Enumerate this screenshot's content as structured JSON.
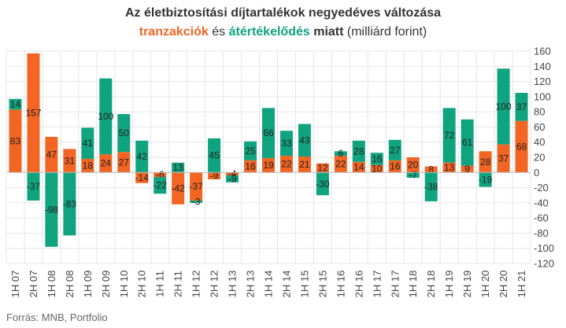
{
  "title": {
    "line1": "Az életbiztosítási díjtartalékok negyedéves változása",
    "line2_part1": "tranzakciók",
    "line2_mid": " és ",
    "line2_part2": "átértékelődés",
    "line2_bold_tail": " miatt",
    "line2_tail": " (milliárd forint)"
  },
  "source": "Forrás: MNB, Portfolio",
  "colors": {
    "tranzakciok": "#f26522",
    "atertekelodes": "#10a37f",
    "grid": "#e6e6e6",
    "text": "#333333"
  },
  "chart_data": {
    "type": "bar",
    "stacked": true,
    "categories": [
      "1H 07",
      "2H 07",
      "1H 08",
      "2H 08",
      "1H 09",
      "2H 09",
      "1H 10",
      "2H 10",
      "1H 11",
      "2H 11",
      "1H 12",
      "2H 12",
      "1H 13",
      "2H 13",
      "1H 14",
      "2H 14",
      "1H 15",
      "2H 15",
      "1H 16",
      "2H 16",
      "1H 17",
      "2H 17",
      "1H 18",
      "2H 18",
      "1H 19",
      "2H 19",
      "1H 20",
      "2H 20",
      "1H 21"
    ],
    "series": [
      {
        "name": "tranzakciók",
        "color": "#f26522",
        "values": [
          83,
          157,
          47,
          31,
          18,
          24,
          27,
          -14,
          -6,
          -42,
          -37,
          -9,
          -4,
          16,
          19,
          22,
          21,
          12,
          22,
          14,
          10,
          16,
          20,
          8,
          13,
          9,
          28,
          37,
          68
        ]
      },
      {
        "name": "átértékelődés",
        "color": "#10a37f",
        "values": [
          14,
          -37,
          -98,
          -83,
          41,
          100,
          50,
          42,
          -22,
          13,
          -3,
          45,
          -9,
          25,
          66,
          33,
          43,
          -30,
          6,
          28,
          16,
          27,
          -7,
          -38,
          72,
          61,
          -19,
          100,
          37
        ]
      }
    ],
    "ylim": [
      -120,
      160
    ],
    "yticks": [
      -120,
      -100,
      -80,
      -60,
      -40,
      -20,
      0,
      20,
      40,
      60,
      80,
      100,
      120,
      140,
      160
    ],
    "grid": true,
    "y_axis_side": "right"
  }
}
